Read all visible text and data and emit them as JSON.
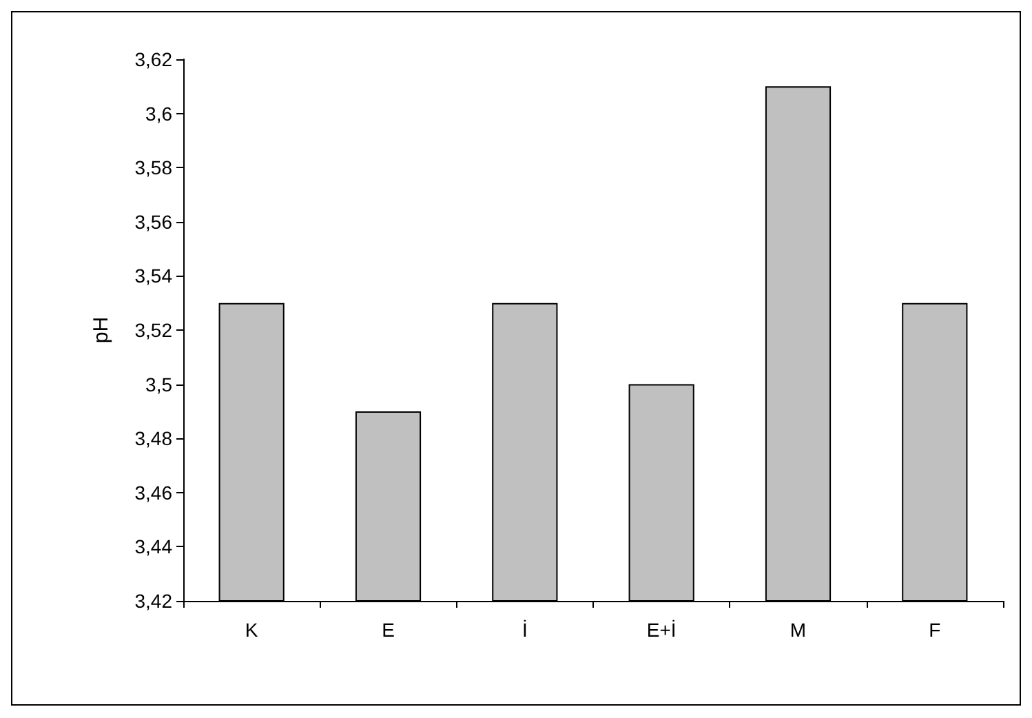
{
  "chart_data": {
    "type": "bar",
    "ylabel": "pH",
    "categories": [
      "K",
      "E",
      "İ",
      "E+İ",
      "M",
      "F"
    ],
    "values": [
      3.53,
      3.49,
      3.53,
      3.5,
      3.61,
      3.53
    ],
    "color": "#c0c0c0",
    "ylim": [
      3.42,
      3.62
    ],
    "yticks": [
      {
        "value": 3.42,
        "label": "3,42"
      },
      {
        "value": 3.44,
        "label": "3,44"
      },
      {
        "value": 3.46,
        "label": "3,46"
      },
      {
        "value": 3.48,
        "label": "3,48"
      },
      {
        "value": 3.5,
        "label": "3,5"
      },
      {
        "value": 3.52,
        "label": "3,52"
      },
      {
        "value": 3.54,
        "label": "3,54"
      },
      {
        "value": 3.56,
        "label": "3,56"
      },
      {
        "value": 3.58,
        "label": "3,58"
      },
      {
        "value": 3.6,
        "label": "3,6"
      },
      {
        "value": 3.62,
        "label": "3,62"
      }
    ],
    "grid": false
  }
}
